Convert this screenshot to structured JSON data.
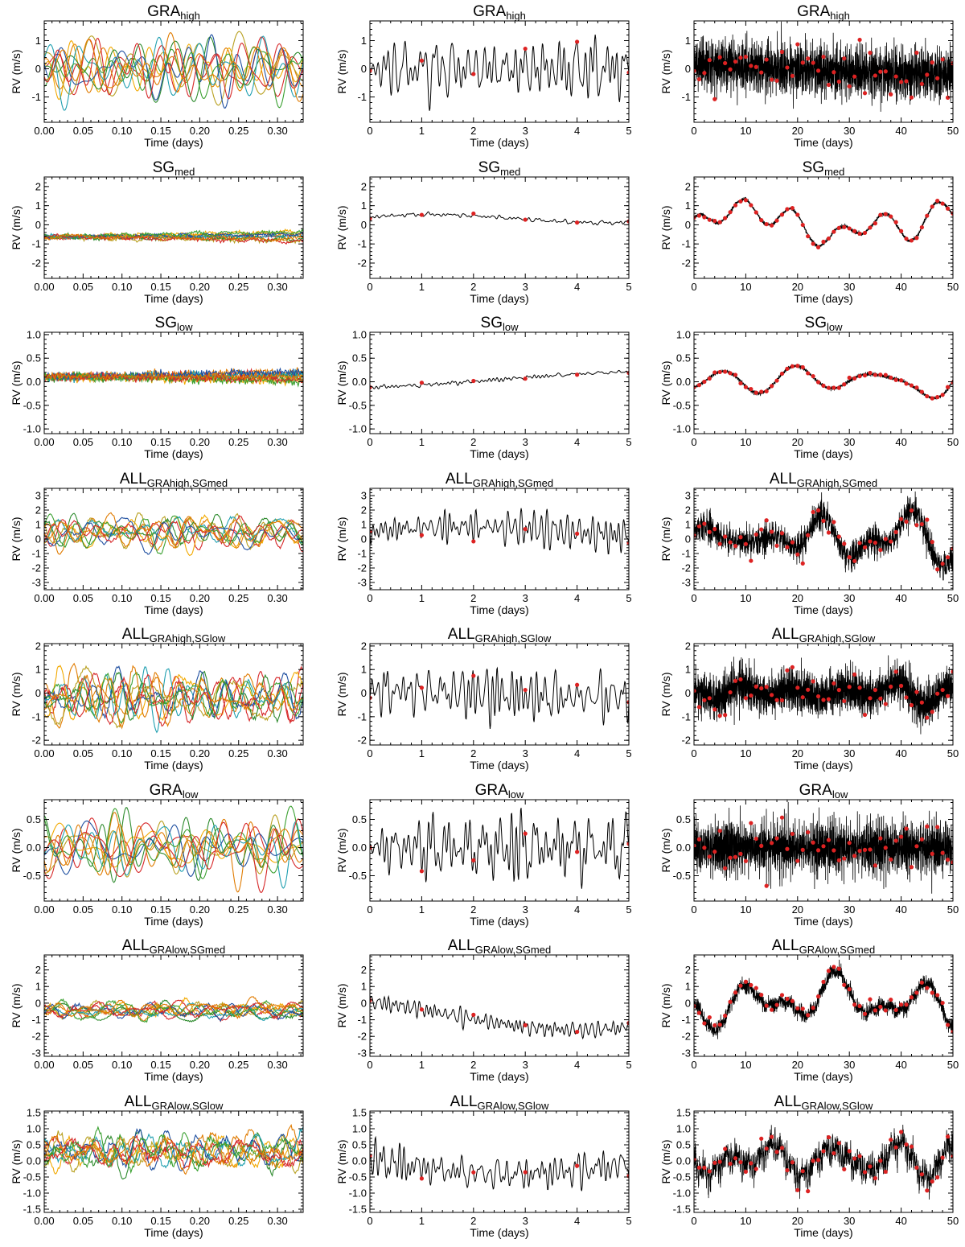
{
  "colors": {
    "series": [
      "#d62728",
      "#e07b00",
      "#f2a900",
      "#b8a020",
      "#2e8b2e",
      "#1f9fb0",
      "#1f4fa0",
      "#3aa030"
    ],
    "line": "#000000",
    "points": "#dd2222"
  },
  "columns": [
    {
      "xlabel": "Time (days)",
      "xlim": [
        0,
        0.333
      ],
      "xticks": [
        "0.00",
        "0.05",
        "0.10",
        "0.15",
        "0.20",
        "0.25",
        "0.30"
      ],
      "xtick_values": [
        0,
        0.05,
        0.1,
        0.15,
        0.2,
        0.25,
        0.3
      ],
      "type": "multi-line"
    },
    {
      "xlabel": "Time (days)",
      "xlim": [
        0,
        5
      ],
      "xticks": [
        "0",
        "1",
        "2",
        "3",
        "4",
        "5"
      ],
      "xtick_values": [
        0,
        1,
        2,
        3,
        4,
        5
      ],
      "type": "line-with-points"
    },
    {
      "xlabel": "Time (days)",
      "xlim": [
        0,
        50
      ],
      "xticks": [
        "0",
        "10",
        "20",
        "30",
        "40",
        "50"
      ],
      "xtick_values": [
        0,
        10,
        20,
        30,
        40,
        50
      ],
      "type": "line-with-points"
    }
  ],
  "rows": [
    {
      "title_main": "GRA",
      "title_sub": "high",
      "ylabel": "RV (m/s)",
      "ylim": [
        -1.9,
        1.7
      ],
      "yticks": [
        "-1",
        "0",
        "1"
      ],
      "ytick_values": [
        -1,
        0,
        1
      ],
      "amp": 0.5,
      "slow": 0.0,
      "seed": 11
    },
    {
      "title_main": "SG",
      "title_sub": "med",
      "ylabel": "RV (m/s)",
      "ylim": [
        -2.8,
        2.5
      ],
      "yticks": [
        "-2",
        "-1",
        "0",
        "1",
        "2"
      ],
      "ytick_values": [
        -2,
        -1,
        0,
        1,
        2
      ],
      "amp": 0.05,
      "slow": 0.6,
      "seed": 23
    },
    {
      "title_main": "SG",
      "title_sub": "low",
      "ylabel": "RV (m/s)",
      "ylim": [
        -1.1,
        1.05
      ],
      "yticks": [
        "-1.0",
        "-0.5",
        "0.0",
        "0.5",
        "1.0"
      ],
      "ytick_values": [
        -1,
        -0.5,
        0,
        0.5,
        1
      ],
      "amp": 0.02,
      "slow": 0.25,
      "seed": 37
    },
    {
      "title_main": "ALL",
      "title_sub": "GRAhigh,SGmed",
      "ylabel": "RV (m/s)",
      "ylim": [
        -3.5,
        3.5
      ],
      "yticks": [
        "-3",
        "-2",
        "-1",
        "0",
        "1",
        "2",
        "3"
      ],
      "ytick_values": [
        -3,
        -2,
        -1,
        0,
        1,
        2,
        3
      ],
      "amp": 0.5,
      "slow": 0.6,
      "seed": 41
    },
    {
      "title_main": "ALL",
      "title_sub": "GRAhigh,SGlow",
      "ylabel": "RV (m/s)",
      "ylim": [
        -2.2,
        2.1
      ],
      "yticks": [
        "-2",
        "-1",
        "0",
        "1",
        "2"
      ],
      "ytick_values": [
        -2,
        -1,
        0,
        1,
        2
      ],
      "amp": 0.5,
      "slow": 0.25,
      "seed": 53
    },
    {
      "title_main": "GRA",
      "title_sub": "low",
      "ylabel": "RV (m/s)",
      "ylim": [
        -0.95,
        0.85
      ],
      "yticks": [
        "-0.5",
        "0.0",
        "0.5"
      ],
      "ytick_values": [
        -0.5,
        0,
        0.5
      ],
      "amp": 0.25,
      "slow": 0.0,
      "seed": 67
    },
    {
      "title_main": "ALL",
      "title_sub": "GRAlow,SGmed",
      "ylabel": "RV (m/s)",
      "ylim": [
        -3.2,
        2.9
      ],
      "yticks": [
        "-3",
        "-2",
        "-1",
        "0",
        "1",
        "2"
      ],
      "ytick_values": [
        -3,
        -2,
        -1,
        0,
        1,
        2
      ],
      "amp": 0.25,
      "slow": 0.6,
      "seed": 79
    },
    {
      "title_main": "ALL",
      "title_sub": "GRAlow,SGlow",
      "ylabel": "RV (m/s)",
      "ylim": [
        -1.6,
        1.55
      ],
      "yticks": [
        "-1.5",
        "-1.0",
        "-0.5",
        "0.0",
        "0.5",
        "1.0",
        "1.5"
      ],
      "ytick_values": [
        -1.5,
        -1,
        -0.5,
        0,
        0.5,
        1,
        1.5
      ],
      "amp": 0.25,
      "slow": 0.25,
      "seed": 97
    }
  ],
  "chart_data": {
    "type": "line",
    "layout": "8 rows x 3 columns of panels",
    "series_per_left_panel": 10,
    "red_points": "daily samples (one per day)"
  }
}
